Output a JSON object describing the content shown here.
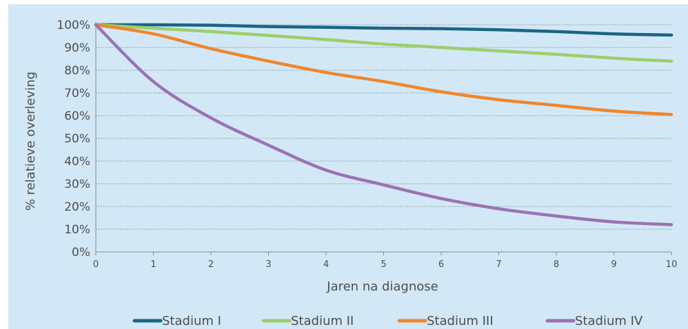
{
  "chart_data": {
    "type": "line",
    "xlabel": "Jaren na diagnose",
    "ylabel": "% relatieve overleving",
    "x": [
      0,
      1,
      2,
      3,
      4,
      5,
      6,
      7,
      8,
      9,
      10
    ],
    "x_ticks": [
      "0",
      "1",
      "2",
      "3",
      "4",
      "5",
      "6",
      "7",
      "8",
      "9",
      "10"
    ],
    "y_ticks": [
      "0%",
      "10%",
      "20%",
      "30%",
      "40%",
      "50%",
      "60%",
      "70%",
      "80%",
      "90%",
      "100%"
    ],
    "xlim": [
      0,
      10
    ],
    "ylim": [
      0,
      100
    ],
    "grid": "horizontal dotted",
    "legend_position": "bottom",
    "series": [
      {
        "name": "Stadium I",
        "color": "#1a6585",
        "values": [
          100,
          100,
          99.8,
          99.2,
          98.9,
          98.5,
          98.3,
          97.8,
          97.0,
          96.0,
          95.5
        ]
      },
      {
        "name": "Stadium II",
        "color": "#9bcf6b",
        "values": [
          100,
          98.5,
          97.0,
          95.3,
          93.5,
          91.5,
          90.0,
          88.5,
          87.0,
          85.3,
          84.0
        ]
      },
      {
        "name": "Stadium III",
        "color": "#f0862c",
        "values": [
          100,
          96.0,
          89.5,
          84.0,
          79.0,
          75.0,
          70.5,
          67.0,
          64.5,
          62.0,
          60.5
        ]
      },
      {
        "name": "Stadium IV",
        "color": "#9a72b3",
        "values": [
          100,
          75.0,
          59.0,
          47.0,
          36.0,
          29.5,
          23.5,
          19.0,
          15.8,
          13.2,
          12.0
        ]
      }
    ]
  }
}
